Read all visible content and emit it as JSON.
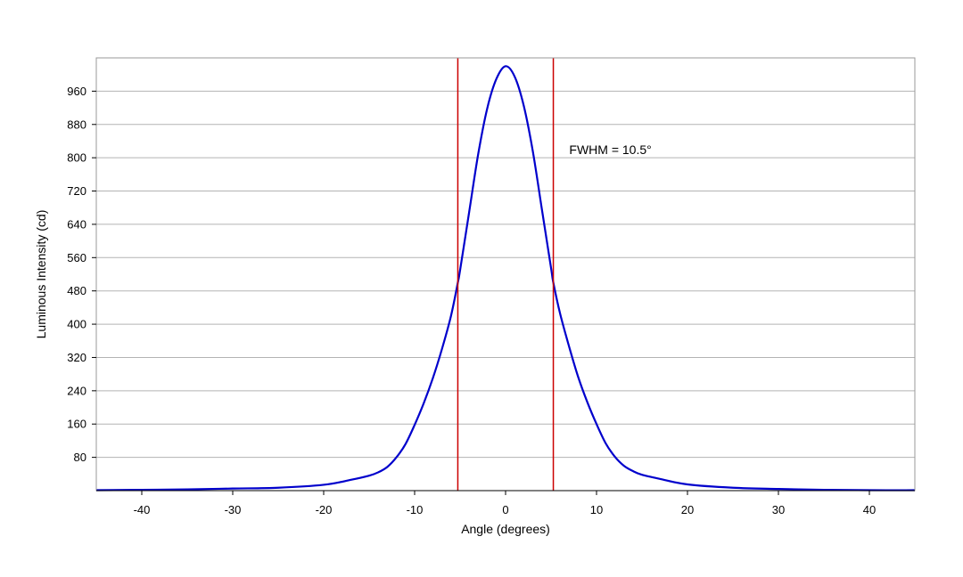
{
  "chart_data": {
    "type": "line",
    "title": "",
    "xlabel": "Angle (degrees)",
    "ylabel": "Luminous Intensity (cd)",
    "xlim": [
      -45,
      45
    ],
    "ylim": [
      0,
      1040
    ],
    "x_ticks": [
      -40,
      -30,
      -20,
      -10,
      0,
      10,
      20,
      30,
      40
    ],
    "x_tick_labels": [
      "-40",
      "-30",
      "-20",
      "-10",
      "0",
      "10",
      "20",
      "30",
      "40"
    ],
    "y_ticks": [
      80,
      160,
      240,
      320,
      400,
      480,
      560,
      640,
      720,
      800,
      880,
      960
    ],
    "y_tick_labels": [
      "80",
      "160",
      "240",
      "320",
      "400",
      "480",
      "560",
      "640",
      "720",
      "800",
      "880",
      "960"
    ],
    "grid": "horizontal",
    "legend": "none",
    "series": [
      {
        "color": "#0000cc",
        "x": [
          -45,
          -40,
          -35,
          -30,
          -25,
          -20,
          -17,
          -15,
          -14,
          -13,
          -12,
          -11,
          -10,
          -9,
          -8,
          -7,
          -6,
          -5.25,
          -5,
          -4,
          -3,
          -2,
          -1,
          0,
          1,
          2,
          3,
          4,
          5,
          5.25,
          6,
          7,
          8,
          9,
          10,
          11,
          12,
          13,
          14,
          15,
          17,
          20,
          25,
          30,
          35,
          40,
          45
        ],
        "y": [
          1,
          2,
          3,
          5,
          7,
          14,
          26,
          36,
          44,
          57,
          80,
          112,
          158,
          210,
          270,
          340,
          420,
          500,
          530,
          670,
          810,
          920,
          990,
          1020,
          995,
          925,
          815,
          675,
          535,
          500,
          425,
          345,
          272,
          212,
          160,
          114,
          82,
          60,
          47,
          38,
          28,
          15,
          7,
          4,
          2,
          1,
          1
        ]
      }
    ],
    "vertical_lines": [
      {
        "x": -5.25,
        "color": "#cc0000"
      },
      {
        "x": 5.25,
        "color": "#cc0000"
      }
    ],
    "annotations": [
      {
        "text": "FWHM = 10.5°",
        "x": 7,
        "y": 820
      }
    ]
  }
}
